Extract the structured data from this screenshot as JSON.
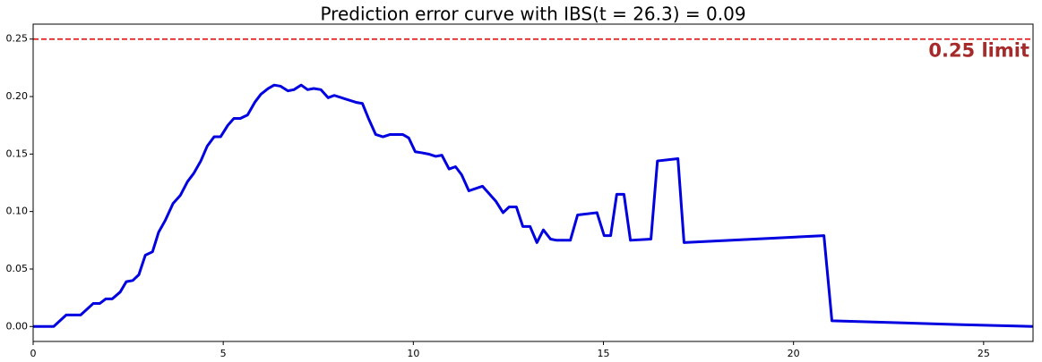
{
  "chart_data": {
    "type": "line",
    "title": "Prediction error curve with IBS(t = 26.3) = 0.09",
    "x": [
      0,
      0.54,
      0.87,
      1.25,
      1.58,
      1.75,
      1.91,
      2.08,
      2.29,
      2.45,
      2.62,
      2.78,
      2.95,
      3.14,
      3.3,
      3.47,
      3.68,
      3.87,
      4.06,
      4.22,
      4.41,
      4.58,
      4.76,
      4.93,
      5.12,
      5.28,
      5.45,
      5.64,
      5.83,
      5.99,
      6.18,
      6.34,
      6.51,
      6.7,
      6.86,
      7.05,
      7.22,
      7.38,
      7.57,
      7.76,
      7.92,
      8.49,
      8.66,
      8.82,
      9.01,
      9.2,
      9.39,
      9.72,
      9.88,
      10.05,
      10.24,
      10.4,
      10.59,
      10.75,
      10.94,
      11.11,
      11.27,
      11.46,
      11.82,
      12.17,
      12.36,
      12.52,
      12.71,
      12.88,
      13.07,
      13.25,
      13.42,
      13.61,
      13.77,
      14.13,
      14.32,
      14.83,
      15.02,
      15.19,
      15.35,
      15.54,
      15.71,
      16.25,
      16.42,
      16.96,
      17.12,
      20.8,
      21.01,
      24.43,
      26.3
    ],
    "series": [
      {
        "color": "#0000e0",
        "values": [
          0,
          0,
          0.01,
          0.01,
          0.02,
          0.02,
          0.024,
          0.024,
          0.03,
          0.039,
          0.04,
          0.045,
          0.062,
          0.065,
          0.082,
          0.092,
          0.107,
          0.114,
          0.126,
          0.133,
          0.144,
          0.157,
          0.165,
          0.165,
          0.175,
          0.181,
          0.181,
          0.184,
          0.195,
          0.202,
          0.207,
          0.21,
          0.209,
          0.205,
          0.206,
          0.21,
          0.206,
          0.207,
          0.206,
          0.199,
          0.201,
          0.195,
          0.194,
          0.181,
          0.167,
          0.165,
          0.167,
          0.167,
          0.164,
          0.152,
          0.151,
          0.15,
          0.148,
          0.149,
          0.137,
          0.139,
          0.132,
          0.118,
          0.122,
          0.109,
          0.099,
          0.104,
          0.104,
          0.087,
          0.087,
          0.073,
          0.084,
          0.076,
          0.075,
          0.075,
          0.097,
          0.099,
          0.079,
          0.079,
          0.115,
          0.115,
          0.075,
          0.076,
          0.144,
          0.146,
          0.073,
          0.079,
          0.005,
          0.0016,
          0
        ]
      }
    ],
    "reference_line": {
      "value": 0.25,
      "color": "#e31a1c",
      "label": "0.25 limit",
      "label_color": "#a52a2a"
    },
    "xlim": [
      0,
      26.3
    ],
    "ylim": [
      -0.013,
      0.263
    ],
    "xticks": [
      0,
      5,
      10,
      15,
      20,
      25
    ],
    "yticks": [
      {
        "value": 0,
        "label": "0.00"
      },
      {
        "value": 0.05,
        "label": "0.05"
      },
      {
        "value": 0.1,
        "label": "0.10"
      },
      {
        "value": 0.15,
        "label": "0.15"
      },
      {
        "value": 0.2,
        "label": "0.20"
      },
      {
        "value": 0.25,
        "label": "0.25"
      }
    ]
  }
}
